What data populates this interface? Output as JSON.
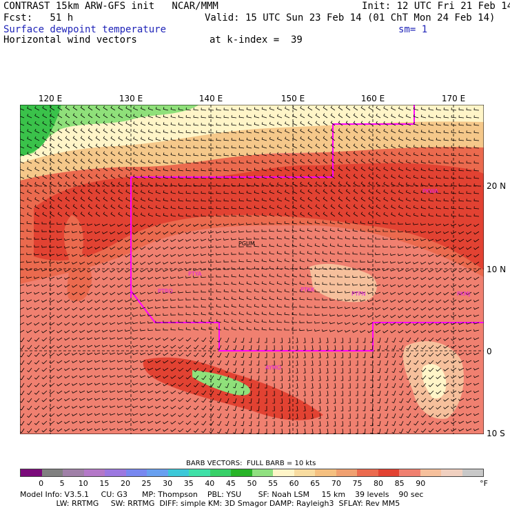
{
  "header": {
    "title": "CONTRAST 15km ARW-GFS init   NCAR/MMM",
    "init": "Init: 12 UTC Fri 21 Feb 14",
    "fcst_label": "Fcst:   51 h",
    "valid": "Valid: 15 UTC Sun 23 Feb 14 (01 ChT Mon 24 Feb 14)",
    "field1": "Surface dewpoint temperature",
    "smoothing": "sm= 1",
    "field2": "Horizontal wind vectors",
    "level": "at k-index =  39"
  },
  "map": {
    "lon_labels": [
      "120 E",
      "130 E",
      "140 E",
      "150 E",
      "160 E",
      "170 E"
    ],
    "lat_labels": [
      "20 N",
      "10 N",
      "0",
      "10 S"
    ],
    "stations": [
      "PGUM",
      "PTYA",
      "PTRO",
      "PKWA",
      "PTKK",
      "PTPN",
      "PKMJ",
      "AYMO"
    ],
    "colors": {
      "land_green": "#8fe07a",
      "deep_green": "#3ac24a",
      "boundary": "#ff00ff",
      "c55": "#fff5c8",
      "c60": "#f5c88a",
      "c65": "#f0a070",
      "c70": "#eb6a4e",
      "c75": "#e24232",
      "c80": "#f08070",
      "c85": "#f6c09c"
    }
  },
  "legend": {
    "barb_caption": "BARB VECTORS:  FULL BARB = 10 kts",
    "ticks": [
      "0",
      "5",
      "10",
      "15",
      "20",
      "25",
      "30",
      "35",
      "40",
      "45",
      "50",
      "55",
      "60",
      "65",
      "70",
      "75",
      "80",
      "85",
      "90"
    ],
    "unit": "°F",
    "colors": [
      "#7a0a7a",
      "#808080",
      "#a080a8",
      "#b478c8",
      "#9c78e0",
      "#7888f0",
      "#68a0f0",
      "#3cc8d8",
      "#40e0a8",
      "#38d068",
      "#28b428",
      "#90e080",
      "#fff5c8",
      "#f8dca0",
      "#f5c080",
      "#f0a070",
      "#eb6a4e",
      "#e24232",
      "#f08070",
      "#f6c09c",
      "#f0d0c0",
      "#c8c8c8"
    ]
  },
  "footer": {
    "line1": "Model Info: V3.5.1     CU: G3      MP: Thompson    PBL: YSU       SF: Noah LSM     15 km    39 levels    90 sec",
    "line2": "               LW: RRTMG     SW: RRTMG  DIFF: simple KM: 3D Smagor DAMP: Rayleigh3  SFLAY: Rev MM5"
  }
}
